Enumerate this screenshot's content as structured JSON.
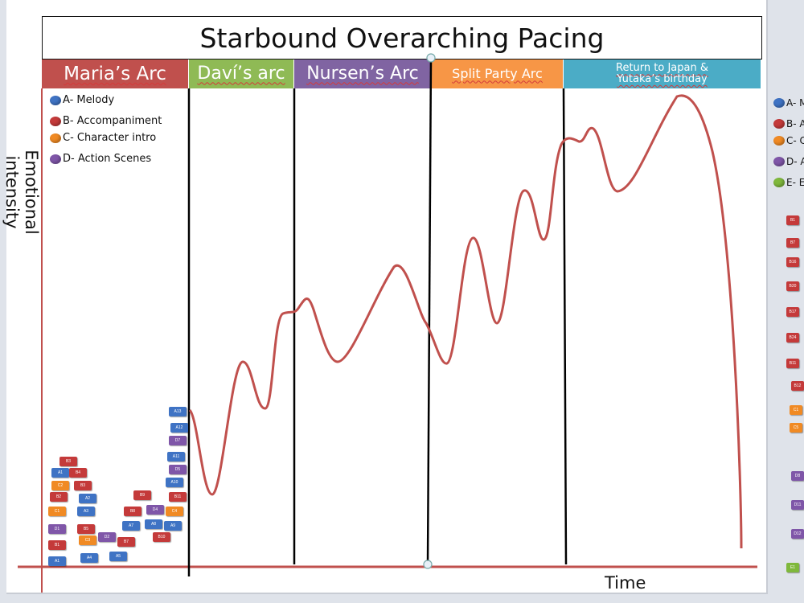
{
  "title": "Starbound Overarching Pacing",
  "y_axis_label": "Emotional intensity",
  "x_axis_label": "Time",
  "colors": {
    "melody": "#3f73c4",
    "accompaniment": "#c43a3a",
    "character_intro": "#f08a24",
    "action": "#7f56a8",
    "extra": "#7fb83c",
    "curve": "#c0504d"
  },
  "arcs": [
    {
      "label": "Maria’s Arc",
      "color": "#c0504d"
    },
    {
      "label": "Daví’s arc",
      "color": "#8fba55"
    },
    {
      "label": "Nursen’s Arc",
      "color": "#8064a2"
    },
    {
      "label": "Split Party Arc",
      "color": "#f79646"
    },
    {
      "label": "Return to Japan & Yutaka’s birthday",
      "color": "#4bacc6"
    }
  ],
  "legend": [
    {
      "label": "A- Melody",
      "color": "#3f73c4"
    },
    {
      "label": "B- Accompaniment",
      "color": "#c43a3a"
    },
    {
      "label": "C- Character intro",
      "color": "#f08a24"
    },
    {
      "label": "D- Action Scenes",
      "color": "#7f56a8"
    }
  ],
  "offslide_legend": [
    {
      "label": "A- M",
      "color": "#3f73c4"
    },
    {
      "label": "B- A",
      "color": "#c43a3a"
    },
    {
      "label": "C- C",
      "color": "#f08a24"
    },
    {
      "label": "D- A",
      "color": "#7f56a8"
    },
    {
      "label": "E- E",
      "color": "#7fb83c"
    }
  ],
  "blocks": [
    {
      "t": "A1",
      "c": "#3f73c4"
    },
    {
      "t": "B1",
      "c": "#c43a3a"
    },
    {
      "t": "D1",
      "c": "#7f56a8"
    },
    {
      "t": "C1",
      "c": "#f08a24"
    },
    {
      "t": "B2",
      "c": "#c43a3a"
    },
    {
      "t": "C2",
      "c": "#f08a24"
    },
    {
      "t": "A1",
      "c": "#3f73c4"
    },
    {
      "t": "B3",
      "c": "#c43a3a"
    },
    {
      "t": "B4",
      "c": "#c43a3a"
    },
    {
      "t": "B3",
      "c": "#c43a3a"
    },
    {
      "t": "A2",
      "c": "#3f73c4"
    },
    {
      "t": "A3",
      "c": "#3f73c4"
    },
    {
      "t": "B5",
      "c": "#c43a3a"
    },
    {
      "t": "C3",
      "c": "#f08a24"
    },
    {
      "t": "A4",
      "c": "#3f73c4"
    },
    {
      "t": "D2",
      "c": "#7f56a8"
    },
    {
      "t": "A5",
      "c": "#3f73c4"
    },
    {
      "t": "B7",
      "c": "#c43a3a"
    },
    {
      "t": "A7",
      "c": "#3f73c4"
    },
    {
      "t": "B8",
      "c": "#c43a3a"
    },
    {
      "t": "B9",
      "c": "#c43a3a"
    },
    {
      "t": "D4",
      "c": "#7f56a8"
    },
    {
      "t": "A8",
      "c": "#3f73c4"
    },
    {
      "t": "B10",
      "c": "#c43a3a"
    },
    {
      "t": "A9",
      "c": "#3f73c4"
    },
    {
      "t": "C4",
      "c": "#f08a24"
    },
    {
      "t": "B11",
      "c": "#c43a3a"
    },
    {
      "t": "A10",
      "c": "#3f73c4"
    },
    {
      "t": "D5",
      "c": "#7f56a8"
    },
    {
      "t": "A11",
      "c": "#3f73c4"
    },
    {
      "t": "D7",
      "c": "#7f56a8"
    },
    {
      "t": "A12",
      "c": "#3f73c4"
    },
    {
      "t": "A13",
      "c": "#3f73c4"
    }
  ],
  "side_blocks": [
    {
      "t": "B1",
      "c": "#c43a3a"
    },
    {
      "t": "B7",
      "c": "#c43a3a"
    },
    {
      "t": "B16",
      "c": "#c43a3a"
    },
    {
      "t": "B20",
      "c": "#c43a3a"
    },
    {
      "t": "B17",
      "c": "#c43a3a"
    },
    {
      "t": "B24",
      "c": "#c43a3a"
    },
    {
      "t": "B11",
      "c": "#c43a3a"
    },
    {
      "t": "B12",
      "c": "#c43a3a"
    },
    {
      "t": "C1",
      "c": "#f08a24"
    },
    {
      "t": "C5",
      "c": "#f08a24"
    },
    {
      "t": "D8",
      "c": "#7f56a8"
    },
    {
      "t": "D11",
      "c": "#7f56a8"
    },
    {
      "t": "D12",
      "c": "#7f56a8"
    },
    {
      "t": "E1",
      "c": "#7fb83c"
    }
  ]
}
